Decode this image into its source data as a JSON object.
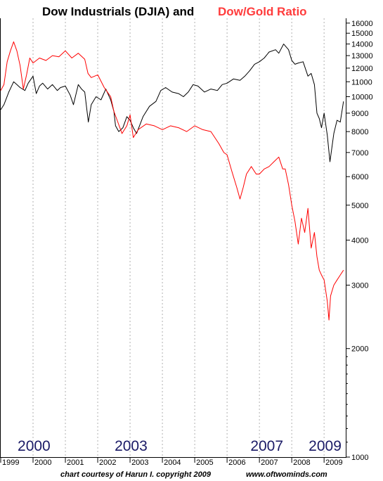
{
  "title": {
    "part1": "Dow Industrials (DJIA) and",
    "part2": "Dow/Gold Ratio"
  },
  "footer": {
    "credit": "chart courtesy of Harun I.   copyright 2009",
    "site": "www.oftwominds.com"
  },
  "colors": {
    "djia": "#000000",
    "dow_gold": "#ff0000",
    "gridline": "#b0b0b0",
    "annotation": "#1a1a66"
  },
  "chart_data": {
    "type": "line",
    "y_scale": "log",
    "ylim": [
      1000,
      16500
    ],
    "xlim": [
      1999.0,
      2009.67
    ],
    "y_ticks": [
      1000,
      2000,
      3000,
      4000,
      5000,
      6000,
      7000,
      8000,
      9000,
      10000,
      11000,
      12000,
      13000,
      14000,
      15000,
      16000
    ],
    "x_tick_labels": [
      "1999",
      "2000",
      "2001",
      "2002",
      "2003",
      "2004",
      "2005",
      "2006",
      "2007",
      "2008",
      "2009"
    ],
    "annotations": [
      {
        "text": "2000",
        "x": 2000.0
      },
      {
        "text": "2003",
        "x": 2003.0
      },
      {
        "text": "2007",
        "x": 2007.2
      },
      {
        "text": "2009",
        "x": 2009.0
      }
    ],
    "grid": "vertical dotted",
    "series": [
      {
        "key": "djia",
        "x": [
          1999.0,
          1999.1,
          1999.25,
          1999.4,
          1999.5,
          1999.6,
          1999.75,
          1999.85,
          2000.0,
          2000.1,
          2000.2,
          2000.3,
          2000.45,
          2000.6,
          2000.75,
          2000.85,
          2001.0,
          2001.15,
          2001.25,
          2001.4,
          2001.5,
          2001.6,
          2001.71,
          2001.8,
          2001.95,
          2002.1,
          2002.25,
          2002.4,
          2002.5,
          2002.55,
          2002.65,
          2002.78,
          2002.9,
          2003.0,
          2003.1,
          2003.2,
          2003.4,
          2003.6,
          2003.8,
          2003.95,
          2004.1,
          2004.3,
          2004.5,
          2004.65,
          2004.8,
          2004.95,
          2005.1,
          2005.3,
          2005.5,
          2005.7,
          2005.85,
          2006.0,
          2006.2,
          2006.4,
          2006.55,
          2006.7,
          2006.85,
          2007.0,
          2007.15,
          2007.3,
          2007.5,
          2007.6,
          2007.75,
          2007.9,
          2008.0,
          2008.1,
          2008.2,
          2008.35,
          2008.5,
          2008.6,
          2008.7,
          2008.78,
          2008.85,
          2008.92,
          2009.0,
          2009.1,
          2009.18,
          2009.3,
          2009.4,
          2009.5,
          2009.6
        ],
        "values": [
          9200,
          9500,
          10300,
          11000,
          10800,
          10600,
          10400,
          10900,
          11400,
          10200,
          10700,
          10900,
          10500,
          10800,
          10400,
          10600,
          10700,
          10100,
          9500,
          10800,
          10500,
          10300,
          8500,
          9500,
          10000,
          9800,
          10500,
          9800,
          9100,
          8300,
          8000,
          8200,
          8800,
          8600,
          8200,
          7900,
          8800,
          9400,
          9700,
          10400,
          10600,
          10300,
          10200,
          10000,
          10300,
          10800,
          10700,
          10300,
          10500,
          10400,
          10800,
          10900,
          11200,
          11100,
          11400,
          11800,
          12300,
          12500,
          12800,
          13300,
          13500,
          13200,
          14000,
          13500,
          12600,
          12300,
          12400,
          12500,
          11400,
          11600,
          10800,
          9000,
          8700,
          8200,
          9000,
          7800,
          6600,
          7900,
          8600,
          8500,
          9700
        ]
      },
      {
        "key": "dow_gold",
        "x": [
          1999.0,
          1999.1,
          1999.2,
          1999.3,
          1999.4,
          1999.5,
          1999.6,
          1999.7,
          1999.8,
          1999.9,
          2000.0,
          2000.2,
          2000.4,
          2000.6,
          2000.8,
          2001.0,
          2001.2,
          2001.4,
          2001.6,
          2001.7,
          2001.8,
          2002.0,
          2002.2,
          2002.4,
          2002.5,
          2002.6,
          2002.75,
          2002.9,
          2003.0,
          2003.1,
          2003.25,
          2003.5,
          2003.75,
          2004.0,
          2004.25,
          2004.5,
          2004.75,
          2005.0,
          2005.25,
          2005.5,
          2005.75,
          2005.9,
          2006.0,
          2006.15,
          2006.3,
          2006.4,
          2006.5,
          2006.6,
          2006.75,
          2006.9,
          2007.0,
          2007.15,
          2007.3,
          2007.45,
          2007.6,
          2007.72,
          2007.8,
          2007.9,
          2008.0,
          2008.1,
          2008.2,
          2008.3,
          2008.4,
          2008.5,
          2008.6,
          2008.7,
          2008.78,
          2008.85,
          2008.92,
          2009.0,
          2009.1,
          2009.15,
          2009.2,
          2009.3,
          2009.4,
          2009.5,
          2009.6
        ],
        "values": [
          10400,
          10800,
          12500,
          13400,
          14200,
          13400,
          12200,
          10500,
          11500,
          12800,
          12400,
          12800,
          12600,
          13000,
          12900,
          13400,
          12800,
          13200,
          12700,
          11600,
          11300,
          11500,
          10600,
          10000,
          9100,
          8600,
          7900,
          8300,
          8900,
          7700,
          8100,
          8400,
          8300,
          8100,
          8300,
          8200,
          8000,
          8300,
          8100,
          8000,
          7400,
          7000,
          6900,
          6200,
          5600,
          5200,
          5600,
          6100,
          6400,
          6100,
          6100,
          6300,
          6400,
          6600,
          6800,
          6300,
          6300,
          5700,
          5000,
          4500,
          3900,
          4600,
          4200,
          4900,
          3800,
          4200,
          3600,
          3300,
          3200,
          3100,
          2700,
          2400,
          2800,
          3000,
          3100,
          3200,
          3300
        ]
      }
    ]
  }
}
